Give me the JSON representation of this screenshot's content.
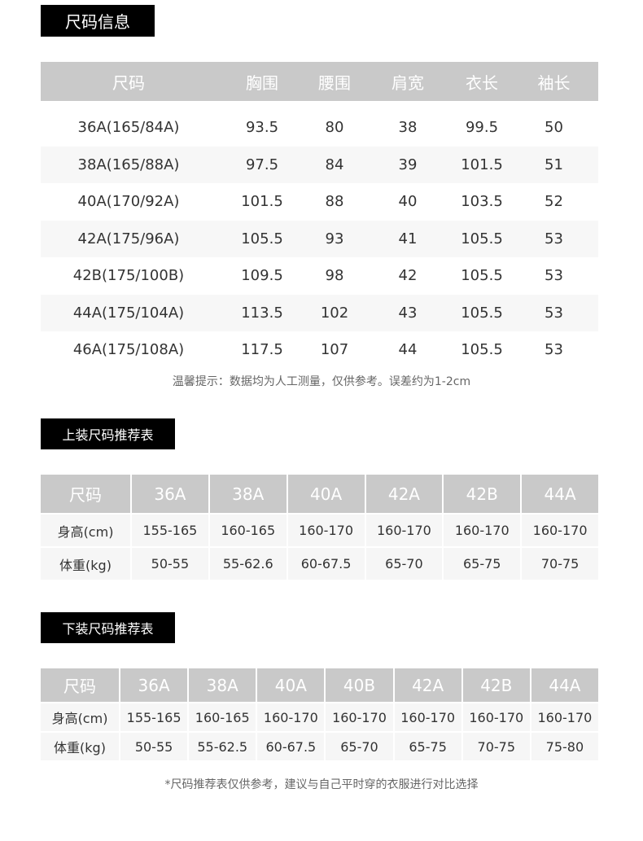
{
  "section1": {
    "title": "尺码信息",
    "headers": [
      "尺码",
      "胸围",
      "腰围",
      "肩宽",
      "衣长",
      "袖长"
    ],
    "rows": [
      [
        "36A(165/84A)",
        "93.5",
        "80",
        "38",
        "99.5",
        "50"
      ],
      [
        "38A(165/88A)",
        "97.5",
        "84",
        "39",
        "101.5",
        "51"
      ],
      [
        "40A(170/92A)",
        "101.5",
        "88",
        "40",
        "103.5",
        "52"
      ],
      [
        "42A(175/96A)",
        "105.5",
        "93",
        "41",
        "105.5",
        "53"
      ],
      [
        "42B(175/100B)",
        "109.5",
        "98",
        "42",
        "105.5",
        "53"
      ],
      [
        "44A(175/104A)",
        "113.5",
        "102",
        "43",
        "105.5",
        "53"
      ],
      [
        "46A(175/108A)",
        "117.5",
        "107",
        "44",
        "105.5",
        "53"
      ]
    ],
    "note": "温馨提示：数据均为人工测量，仅供参考。误差约为1-2cm"
  },
  "section2": {
    "title": "上装尺码推荐表",
    "headers": [
      "尺码",
      "36A",
      "38A",
      "40A",
      "42A",
      "42B",
      "44A"
    ],
    "rows": [
      [
        "身高(cm)",
        "155-165",
        "160-165",
        "160-170",
        "160-170",
        "160-170",
        "160-170"
      ],
      [
        "体重(kg)",
        "50-55",
        "55-62.6",
        "60-67.5",
        "65-70",
        "65-75",
        "70-75"
      ]
    ]
  },
  "section3": {
    "title": "下装尺码推荐表",
    "headers": [
      "尺码",
      "36A",
      "38A",
      "40A",
      "40B",
      "42A",
      "42B",
      "44A"
    ],
    "rows": [
      [
        "身高(cm)",
        "155-165",
        "160-165",
        "160-170",
        "160-170",
        "160-170",
        "160-170",
        "160-170"
      ],
      [
        "体重(kg)",
        "50-55",
        "55-62.5",
        "60-67.5",
        "65-70",
        "65-75",
        "70-75",
        "75-80"
      ]
    ],
    "footnote": "*尺码推荐表仅供参考，建议与自己平时穿的衣服进行对比选择"
  },
  "colors": {
    "header_bg": "#c9c9c9",
    "tag_bg": "#000000",
    "alt_row": "#f7f7f7"
  }
}
